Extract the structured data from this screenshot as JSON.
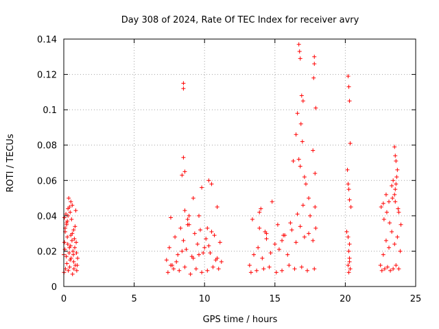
{
  "chart_data": {
    "type": "scatter",
    "title": "Day 308 of 2024, Rate Of TEC Index for receiver avry",
    "xlabel": "GPS time / hours",
    "ylabel": "ROTI / TECUs",
    "xlim": [
      0,
      25
    ],
    "ylim": [
      0,
      0.14
    ],
    "x_ticks": [
      0,
      5,
      10,
      15,
      20,
      25
    ],
    "x_tick_labels": [
      "0",
      "5",
      "10",
      "15",
      "20",
      "25"
    ],
    "y_ticks": [
      0,
      0.02,
      0.04,
      0.06,
      0.08,
      0.1,
      0.12,
      0.14
    ],
    "y_tick_labels": [
      "0",
      "0.02",
      "0.04",
      "0.06",
      "0.08",
      "0.1",
      "0.12",
      "0.14"
    ],
    "grid": true,
    "marker": "+",
    "color": "#ff0000",
    "series": [
      {
        "name": "ROTI",
        "x": [
          0.0,
          0.05,
          0.1,
          0.15,
          0.2,
          0.25,
          0.3,
          0.35,
          0.4,
          0.45,
          0.5,
          0.55,
          0.6,
          0.65,
          0.7,
          0.75,
          0.8,
          0.85,
          0.9,
          0.95,
          0.02,
          0.12,
          0.22,
          0.32,
          0.42,
          0.52,
          0.62,
          0.72,
          0.82,
          0.92,
          0.08,
          0.18,
          0.28,
          0.38,
          0.48,
          0.58,
          0.68,
          0.78,
          0.88,
          0.98,
          0.1,
          0.2,
          0.3,
          0.4,
          0.5,
          0.6,
          0.7,
          0.05,
          0.25,
          0.45,
          7.3,
          7.5,
          7.7,
          7.9,
          8.1,
          8.3,
          8.5,
          8.7,
          8.9,
          9.1,
          9.3,
          9.5,
          9.7,
          9.9,
          10.1,
          10.3,
          10.5,
          10.7,
          10.9,
          11.1,
          7.4,
          7.8,
          8.2,
          8.6,
          9.0,
          9.4,
          9.8,
          10.2,
          10.6,
          11.0,
          7.6,
          8.0,
          8.4,
          8.8,
          9.2,
          9.6,
          10.0,
          10.4,
          10.8,
          11.2,
          8.5,
          8.5,
          8.5,
          8.6,
          8.4,
          8.6,
          7.6,
          9.2,
          9.8,
          10.3,
          10.5,
          10.9,
          8.8,
          8.9,
          9.6,
          10.2,
          13.2,
          13.5,
          13.8,
          14.1,
          14.4,
          14.7,
          15.0,
          15.3,
          15.6,
          15.9,
          16.2,
          16.5,
          16.8,
          17.1,
          17.4,
          17.7,
          17.9,
          13.3,
          13.7,
          14.2,
          14.6,
          15.1,
          15.5,
          16.0,
          16.4,
          16.9,
          17.3,
          17.8,
          13.4,
          13.9,
          14.3,
          14.8,
          15.2,
          15.7,
          16.1,
          16.6,
          17.0,
          17.5,
          17.85,
          16.7,
          16.75,
          16.8,
          16.9,
          17.0,
          16.6,
          16.85,
          16.95,
          16.7,
          16.8,
          17.1,
          17.8,
          17.8,
          17.75,
          17.9,
          17.7,
          17.85,
          16.5,
          16.3,
          17.2,
          17.4,
          14.0,
          14.4,
          15.5,
          13.9,
          20.2,
          20.25,
          20.3,
          20.35,
          20.15,
          20.2,
          20.25,
          20.3,
          20.4,
          20.1,
          20.2,
          20.3,
          20.25,
          20.3,
          20.2,
          20.35,
          20.25,
          20.3,
          22.5,
          22.7,
          22.9,
          23.1,
          23.3,
          23.5,
          23.7,
          23.9,
          22.6,
          22.8,
          23.0,
          23.2,
          23.4,
          23.6,
          23.8,
          22.55,
          22.75,
          22.95,
          23.15,
          23.35,
          23.55,
          23.75,
          23.95,
          23.5,
          23.55,
          23.6,
          23.7,
          23.65,
          23.6,
          23.55,
          23.5,
          23.4,
          23.3,
          22.9,
          23.1,
          22.7,
          23.8
        ],
        "y": [
          0.018,
          0.025,
          0.033,
          0.041,
          0.035,
          0.028,
          0.044,
          0.05,
          0.022,
          0.015,
          0.029,
          0.038,
          0.046,
          0.02,
          0.014,
          0.027,
          0.034,
          0.043,
          0.019,
          0.012,
          0.008,
          0.01,
          0.013,
          0.009,
          0.011,
          0.016,
          0.007,
          0.01,
          0.012,
          0.009,
          0.021,
          0.017,
          0.024,
          0.019,
          0.023,
          0.026,
          0.018,
          0.022,
          0.025,
          0.016,
          0.031,
          0.036,
          0.04,
          0.045,
          0.048,
          0.03,
          0.032,
          0.039,
          0.037,
          0.042,
          0.015,
          0.022,
          0.012,
          0.028,
          0.018,
          0.033,
          0.026,
          0.021,
          0.035,
          0.017,
          0.03,
          0.024,
          0.032,
          0.019,
          0.027,
          0.023,
          0.031,
          0.029,
          0.016,
          0.025,
          0.008,
          0.01,
          0.009,
          0.011,
          0.007,
          0.01,
          0.008,
          0.009,
          0.011,
          0.01,
          0.012,
          0.014,
          0.02,
          0.038,
          0.016,
          0.018,
          0.022,
          0.019,
          0.015,
          0.014,
          0.115,
          0.112,
          0.073,
          0.065,
          0.063,
          0.043,
          0.039,
          0.05,
          0.056,
          0.06,
          0.058,
          0.045,
          0.035,
          0.04,
          0.04,
          0.033,
          0.012,
          0.018,
          0.022,
          0.016,
          0.027,
          0.019,
          0.024,
          0.021,
          0.029,
          0.018,
          0.032,
          0.025,
          0.034,
          0.028,
          0.03,
          0.026,
          0.033,
          0.008,
          0.009,
          0.01,
          0.011,
          0.008,
          0.009,
          0.012,
          0.01,
          0.011,
          0.009,
          0.01,
          0.038,
          0.033,
          0.031,
          0.048,
          0.035,
          0.029,
          0.036,
          0.041,
          0.046,
          0.04,
          0.045,
          0.137,
          0.133,
          0.129,
          0.108,
          0.105,
          0.098,
          0.092,
          0.082,
          0.072,
          0.068,
          0.062,
          0.13,
          0.126,
          0.118,
          0.101,
          0.077,
          0.064,
          0.086,
          0.071,
          0.058,
          0.05,
          0.044,
          0.03,
          0.026,
          0.042,
          0.119,
          0.113,
          0.105,
          0.081,
          0.066,
          0.058,
          0.055,
          0.049,
          0.045,
          0.031,
          0.028,
          0.024,
          0.02,
          0.016,
          0.012,
          0.01,
          0.008,
          0.014,
          0.012,
          0.018,
          0.026,
          0.022,
          0.031,
          0.024,
          0.028,
          0.02,
          0.009,
          0.01,
          0.011,
          0.009,
          0.01,
          0.012,
          0.01,
          0.045,
          0.038,
          0.042,
          0.036,
          0.05,
          0.048,
          0.044,
          0.035,
          0.079,
          0.074,
          0.071,
          0.066,
          0.062,
          0.058,
          0.055,
          0.052,
          0.06,
          0.057,
          0.052,
          0.048,
          0.047,
          0.042
        ]
      }
    ]
  }
}
